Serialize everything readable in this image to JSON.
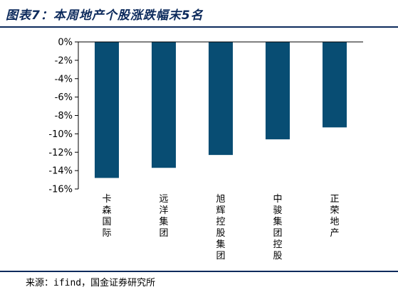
{
  "title": "图表7：本周地产个股涨跌幅末5名",
  "source": "来源：ifind，国金证券研究所",
  "colors": {
    "bar": "#084d73",
    "axis": "#000000",
    "title": "#0c2a5c"
  },
  "chart_data": {
    "type": "bar",
    "categories": [
      "卡森国际",
      "远洋集团",
      "旭辉控股集团",
      "中骏集团控股",
      "正荣地产"
    ],
    "values": [
      -14.8,
      -13.7,
      -12.3,
      -10.6,
      -9.3
    ],
    "ylim": [
      -16,
      0
    ],
    "yticks": [
      0,
      -2,
      -4,
      -6,
      -8,
      -10,
      -12,
      -14,
      -16
    ],
    "ytick_labels": [
      "0%",
      "-2%",
      "-4%",
      "-6%",
      "-8%",
      "-10%",
      "-12%",
      "-14%",
      "-16%"
    ],
    "grid": false,
    "legend": "none"
  }
}
